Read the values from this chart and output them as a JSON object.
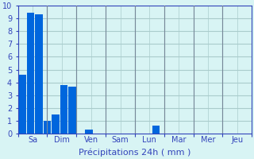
{
  "values": [
    4.6,
    9.4,
    9.3,
    1.0,
    1.5,
    3.8,
    3.7,
    0.0,
    0.35,
    0.0,
    0.0,
    0.0,
    0.0,
    0.0,
    0.0,
    0.0,
    0.65,
    0.0,
    0.0,
    0.0,
    0.0,
    0.0,
    0.0,
    0.0,
    0.0,
    0.0,
    0.0,
    0.0
  ],
  "n_bars": 28,
  "day_labels": [
    "Sa",
    "Dim",
    "Ven",
    "Sam",
    "Lun",
    "Mar",
    "Mer",
    "Jeu"
  ],
  "day_positions": [
    0,
    3.5,
    7,
    10.5,
    14,
    17.5,
    21,
    24.5
  ],
  "bar_color": "#0066dd",
  "background_color": "#d8f4f4",
  "grid_color": "#aacccc",
  "axis_label_color": "#3344bb",
  "tick_color": "#3344bb",
  "xlabel": "Précipitations 24h ( mm )",
  "ylim": [
    0,
    10
  ],
  "yticks": [
    0,
    1,
    2,
    3,
    4,
    5,
    6,
    7,
    8,
    9,
    10
  ],
  "xlabel_fontsize": 8,
  "tick_fontsize": 7
}
